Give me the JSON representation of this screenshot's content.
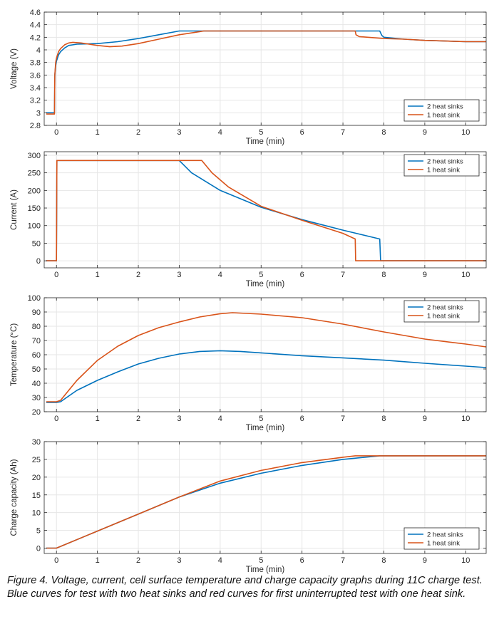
{
  "caption": "Figure 4. Voltage, current, cell surface temperature and charge capacity graphs during 11C charge test. Blue curves for test with two heat sinks and red curves for first uninterrupted test with one heat sink.",
  "colors": {
    "series_1": "#0072BD",
    "series_2": "#D95319",
    "axis": "#262626",
    "grid": "#e6e6e6"
  },
  "chart_data": [
    {
      "type": "line",
      "xlabel": "Time (min)",
      "ylabel": "Voltage (V)",
      "xlim": [
        -0.3,
        10.5
      ],
      "ylim": [
        2.8,
        4.6
      ],
      "xticks": [
        0,
        1,
        2,
        3,
        4,
        5,
        6,
        7,
        8,
        9,
        10
      ],
      "yticks": [
        2.8,
        3,
        3.2,
        3.4,
        3.6,
        3.8,
        4,
        4.2,
        4.4,
        4.6
      ],
      "ytick_labels": [
        "2.8",
        "3",
        "3.2",
        "3.4",
        "3.6",
        "3.8",
        "4",
        "4.2",
        "4.4",
        "4.6"
      ],
      "grid": true,
      "legend_position": "bottom-right",
      "series": [
        {
          "name": "2 heat sinks",
          "x": [
            -0.25,
            -0.05,
            -0.04,
            -0.02,
            0.0,
            0.05,
            0.1,
            0.2,
            0.3,
            0.5,
            1,
            1.5,
            2,
            2.5,
            3,
            3.5,
            4,
            5,
            6,
            7,
            7.3,
            7.9,
            7.95,
            8.0,
            8.5,
            9,
            9.5,
            10,
            10.5
          ],
          "y": [
            3.0,
            3.0,
            3.6,
            3.75,
            3.82,
            3.92,
            3.97,
            4.03,
            4.07,
            4.09,
            4.1,
            4.13,
            4.18,
            4.24,
            4.3,
            4.3,
            4.3,
            4.3,
            4.3,
            4.3,
            4.3,
            4.3,
            4.23,
            4.2,
            4.17,
            4.15,
            4.14,
            4.13,
            4.13
          ]
        },
        {
          "name": "1 heat sink",
          "x": [
            -0.25,
            -0.05,
            -0.04,
            -0.02,
            0.0,
            0.05,
            0.1,
            0.2,
            0.3,
            0.4,
            0.6,
            1.0,
            1.3,
            1.6,
            2,
            2.5,
            3,
            3.5,
            3.6,
            4,
            5,
            6,
            7,
            7.3,
            7.32,
            7.4,
            8,
            8.5,
            9,
            9.5,
            10,
            10.5
          ],
          "y": [
            2.98,
            2.98,
            3.6,
            3.8,
            3.87,
            3.97,
            4.02,
            4.08,
            4.11,
            4.12,
            4.11,
            4.07,
            4.05,
            4.06,
            4.1,
            4.17,
            4.24,
            4.29,
            4.3,
            4.3,
            4.3,
            4.3,
            4.3,
            4.3,
            4.24,
            4.21,
            4.18,
            4.17,
            4.15,
            4.14,
            4.13,
            4.13
          ]
        }
      ]
    },
    {
      "type": "line",
      "xlabel": "Time (min)",
      "ylabel": "Current (A)",
      "xlim": [
        -0.3,
        10.5
      ],
      "ylim": [
        -20,
        310
      ],
      "xticks": [
        0,
        1,
        2,
        3,
        4,
        5,
        6,
        7,
        8,
        9,
        10
      ],
      "yticks": [
        0,
        50,
        100,
        150,
        200,
        250,
        300
      ],
      "ytick_labels": [
        "0",
        "50",
        "100",
        "150",
        "200",
        "250",
        "300"
      ],
      "grid": true,
      "legend_position": "top-right",
      "series": [
        {
          "name": "2 heat sinks",
          "x": [
            -0.25,
            0.0,
            0.01,
            3.0,
            3.3,
            4,
            5,
            6,
            7,
            7.9,
            7.92,
            10.5
          ],
          "y": [
            0,
            0,
            285,
            285,
            250,
            200,
            152,
            117,
            87,
            62,
            0,
            0
          ]
        },
        {
          "name": "1 heat sink",
          "x": [
            -0.25,
            0.0,
            0.01,
            3.55,
            3.8,
            4.2,
            5,
            6,
            7,
            7.3,
            7.31,
            10.5
          ],
          "y": [
            0,
            0,
            285,
            285,
            250,
            210,
            155,
            115,
            78,
            62,
            0,
            0
          ]
        }
      ]
    },
    {
      "type": "line",
      "xlabel": "Time (min)",
      "ylabel": "Temperature (°C)",
      "xlim": [
        -0.3,
        10.5
      ],
      "ylim": [
        20,
        100
      ],
      "xticks": [
        0,
        1,
        2,
        3,
        4,
        5,
        6,
        7,
        8,
        9,
        10
      ],
      "yticks": [
        20,
        30,
        40,
        50,
        60,
        70,
        80,
        90,
        100
      ],
      "ytick_labels": [
        "20",
        "30",
        "40",
        "50",
        "60",
        "70",
        "80",
        "90",
        "100"
      ],
      "grid": true,
      "legend_position": "top-right",
      "series": [
        {
          "name": "2 heat sinks",
          "x": [
            -0.25,
            0,
            0.1,
            0.3,
            0.5,
            1,
            1.5,
            2,
            2.5,
            3,
            3.5,
            4,
            4.5,
            5,
            6,
            7,
            8,
            9,
            10,
            10.5
          ],
          "y": [
            26.5,
            26.5,
            27,
            31,
            35,
            42,
            48,
            53.5,
            57.5,
            60.5,
            62.3,
            62.8,
            62.3,
            61.3,
            59.3,
            57.8,
            56.2,
            54,
            52,
            51
          ]
        },
        {
          "name": "1 heat sink",
          "x": [
            -0.25,
            0,
            0.1,
            0.3,
            0.5,
            1,
            1.5,
            2,
            2.5,
            3,
            3.5,
            4,
            4.3,
            5,
            6,
            7,
            8,
            9,
            10,
            10.5
          ],
          "y": [
            27,
            27,
            28,
            35,
            42,
            56,
            66,
            73.5,
            79,
            83,
            86.5,
            88.8,
            89.5,
            88.5,
            86,
            81.5,
            76,
            71,
            67.5,
            65.5
          ]
        }
      ]
    },
    {
      "type": "line",
      "xlabel": "Time (min)",
      "ylabel": "Charge capacity (Ah)",
      "xlim": [
        -0.3,
        10.5
      ],
      "ylim": [
        -1.5,
        30
      ],
      "xticks": [
        0,
        1,
        2,
        3,
        4,
        5,
        6,
        7,
        8,
        9,
        10
      ],
      "yticks": [
        0,
        5,
        10,
        15,
        20,
        25,
        30
      ],
      "ytick_labels": [
        "0",
        "5",
        "10",
        "15",
        "20",
        "25",
        "30"
      ],
      "grid": true,
      "legend_position": "bottom-right",
      "series": [
        {
          "name": "2 heat sinks",
          "x": [
            -0.25,
            0,
            1,
            2,
            3,
            4,
            5,
            6,
            7,
            7.9,
            8.5,
            10.5
          ],
          "y": [
            0,
            0,
            4.8,
            9.6,
            14.4,
            18.3,
            21.1,
            23.3,
            25,
            26,
            26,
            26
          ]
        },
        {
          "name": "1 heat sink",
          "x": [
            -0.25,
            0,
            1,
            2,
            3,
            4,
            5,
            6,
            7,
            7.3,
            8,
            10.5
          ],
          "y": [
            0,
            0,
            4.8,
            9.6,
            14.4,
            18.9,
            21.9,
            24.1,
            25.6,
            26,
            26,
            26
          ]
        }
      ]
    }
  ]
}
